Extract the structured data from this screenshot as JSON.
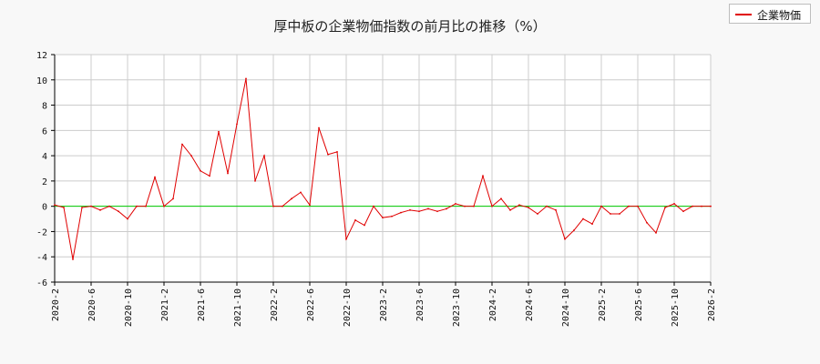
{
  "chart_data": {
    "type": "line",
    "title": "厚中板の企業物価指数の前月比の推移（%）",
    "xlabel": "",
    "ylabel": "",
    "ylim": [
      -6,
      12
    ],
    "yticks": [
      -6,
      -4,
      -2,
      0,
      2,
      4,
      6,
      8,
      10,
      12
    ],
    "xticks": [
      "2020-2",
      "2020-6",
      "2020-10",
      "2021-2",
      "2021-6",
      "2021-10",
      "2022-2",
      "2022-6",
      "2022-10",
      "2023-2",
      "2023-6",
      "2023-10",
      "2024-2",
      "2024-6",
      "2024-10",
      "2025-2",
      "2025-6",
      "2025-10",
      "2026-2"
    ],
    "grid": true,
    "legend_position": "top-right",
    "reference_line": {
      "y": 0,
      "color": "#00cc00"
    },
    "series": [
      {
        "name": "企業物価",
        "color": "#e00000",
        "x": [
          "2020-2",
          "2020-3",
          "2020-4",
          "2020-5",
          "2020-6",
          "2020-7",
          "2020-8",
          "2020-9",
          "2020-10",
          "2020-11",
          "2020-12",
          "2021-1",
          "2021-2",
          "2021-3",
          "2021-4",
          "2021-5",
          "2021-6",
          "2021-7",
          "2021-8",
          "2021-9",
          "2021-10",
          "2021-11",
          "2021-12",
          "2022-1",
          "2022-2",
          "2022-3",
          "2022-4",
          "2022-5",
          "2022-6",
          "2022-7",
          "2022-8",
          "2022-9",
          "2022-10",
          "2022-11",
          "2022-12",
          "2023-1",
          "2023-2",
          "2023-3",
          "2023-4",
          "2023-5",
          "2023-6",
          "2023-7",
          "2023-8",
          "2023-9",
          "2023-10",
          "2023-11",
          "2023-12",
          "2024-1",
          "2024-2",
          "2024-3",
          "2024-4",
          "2024-5",
          "2024-6",
          "2024-7",
          "2024-8",
          "2024-9",
          "2024-10",
          "2024-11",
          "2024-12",
          "2025-1",
          "2025-2",
          "2025-3",
          "2025-4",
          "2025-5",
          "2025-6",
          "2025-7",
          "2025-8",
          "2025-9",
          "2025-10",
          "2025-11",
          "2025-12",
          "2026-1",
          "2026-2"
        ],
        "values": [
          0.1,
          -0.1,
          -4.2,
          -0.1,
          0.0,
          -0.3,
          0.0,
          -0.4,
          -1.0,
          0.0,
          0.0,
          2.3,
          0.0,
          0.6,
          4.9,
          4.0,
          2.8,
          2.4,
          5.9,
          2.6,
          6.5,
          10.1,
          2.0,
          4.0,
          0.0,
          0.0,
          0.6,
          1.1,
          0.1,
          6.2,
          4.1,
          4.3,
          -2.6,
          -1.1,
          -1.5,
          0.0,
          -0.9,
          -0.8,
          -0.5,
          -0.3,
          -0.4,
          -0.2,
          -0.4,
          -0.2,
          0.2,
          0.0,
          0.0,
          2.4,
          0.0,
          0.6,
          -0.3,
          0.1,
          -0.1,
          -0.6,
          0.0,
          -0.3,
          -2.6,
          -1.9,
          -1.0,
          -1.4,
          0.0,
          -0.6,
          -0.6,
          0.0,
          0.0,
          -1.3,
          -2.1,
          -0.1,
          0.2,
          -0.4,
          0.0,
          0.0,
          0.0
        ]
      }
    ]
  }
}
